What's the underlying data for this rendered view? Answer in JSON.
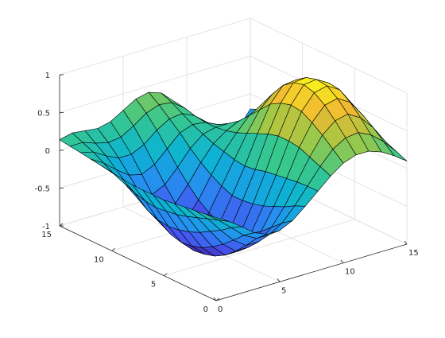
{
  "chart_data": {
    "type": "surface",
    "title": "",
    "xlabel": "",
    "ylabel": "",
    "zlabel": "",
    "x_range": [
      0,
      15
    ],
    "y_range": [
      0,
      15
    ],
    "zlim": [
      -1,
      1
    ],
    "x_ticks": [
      0,
      5,
      10,
      15
    ],
    "y_ticks": [
      0,
      5,
      10,
      15
    ],
    "z_ticks": [
      -1,
      -0.5,
      0,
      0.5,
      1
    ],
    "x_tick_labels": [
      "0",
      "5",
      "10",
      "15"
    ],
    "y_tick_labels": [
      "0",
      "5",
      "10",
      "15"
    ],
    "z_tick_labels": [
      "-1",
      "-0.5",
      "0",
      "0.5",
      "1"
    ],
    "grid": true,
    "colormap": "parula",
    "mesh_size": [
      16,
      16
    ],
    "x": [
      0,
      1,
      2,
      3,
      4,
      5,
      6,
      7,
      8,
      9,
      10,
      11,
      12,
      13,
      14,
      15
    ],
    "y": [
      0,
      1,
      2,
      3,
      4,
      5,
      6,
      7,
      8,
      9,
      10,
      11,
      12,
      13,
      14,
      15
    ],
    "z": [
      [
        0.1,
        0.0,
        -0.12,
        -0.25,
        -0.32,
        -0.32,
        -0.24,
        -0.1,
        0.05,
        0.2,
        0.32,
        0.38,
        0.38,
        0.32,
        0.22,
        0.1
      ],
      [
        0.08,
        -0.05,
        -0.2,
        -0.35,
        -0.44,
        -0.44,
        -0.34,
        -0.16,
        0.05,
        0.26,
        0.44,
        0.54,
        0.56,
        0.48,
        0.34,
        0.16
      ],
      [
        0.06,
        -0.1,
        -0.3,
        -0.48,
        -0.6,
        -0.6,
        -0.46,
        -0.24,
        0.04,
        0.32,
        0.56,
        0.7,
        0.74,
        0.64,
        0.46,
        0.22
      ],
      [
        0.04,
        -0.15,
        -0.38,
        -0.6,
        -0.74,
        -0.74,
        -0.58,
        -0.3,
        0.02,
        0.38,
        0.66,
        0.84,
        0.88,
        0.78,
        0.56,
        0.28
      ],
      [
        0.02,
        -0.2,
        -0.46,
        -0.7,
        -0.86,
        -0.86,
        -0.68,
        -0.36,
        0.0,
        0.4,
        0.74,
        0.94,
        0.98,
        0.88,
        0.64,
        0.32
      ],
      [
        0.0,
        -0.24,
        -0.52,
        -0.78,
        -0.94,
        -0.94,
        -0.74,
        -0.4,
        -0.02,
        0.4,
        0.76,
        0.98,
        1.0,
        0.9,
        0.66,
        0.34
      ],
      [
        0.0,
        -0.26,
        -0.56,
        -0.82,
        -0.98,
        -0.98,
        -0.76,
        -0.42,
        -0.06,
        0.36,
        0.72,
        0.94,
        0.96,
        0.84,
        0.62,
        0.32
      ],
      [
        0.0,
        -0.28,
        -0.58,
        -0.84,
        -1.0,
        -0.98,
        -0.74,
        -0.42,
        -0.08,
        0.3,
        0.64,
        0.84,
        0.86,
        0.74,
        0.54,
        0.28
      ],
      [
        0.0,
        -0.26,
        -0.56,
        -0.8,
        -0.94,
        -0.9,
        -0.66,
        -0.36,
        -0.06,
        0.24,
        0.5,
        0.66,
        0.68,
        0.58,
        0.42,
        0.22
      ],
      [
        0.02,
        -0.22,
        -0.5,
        -0.72,
        -0.84,
        -0.78,
        -0.56,
        -0.28,
        -0.02,
        0.18,
        0.36,
        0.46,
        0.48,
        0.42,
        0.3,
        0.16
      ],
      [
        0.04,
        -0.16,
        -0.4,
        -0.6,
        -0.7,
        -0.62,
        -0.42,
        -0.18,
        0.02,
        0.14,
        0.22,
        0.26,
        0.26,
        0.22,
        0.16,
        0.1
      ],
      [
        0.06,
        -0.1,
        -0.28,
        -0.44,
        -0.52,
        -0.44,
        -0.26,
        -0.06,
        0.08,
        0.12,
        0.12,
        0.08,
        0.04,
        0.02,
        0.02,
        0.04
      ],
      [
        0.08,
        -0.02,
        -0.16,
        -0.28,
        -0.32,
        -0.24,
        -0.08,
        0.08,
        0.14,
        0.12,
        0.04,
        -0.08,
        -0.16,
        -0.18,
        -0.12,
        -0.02
      ],
      [
        0.1,
        0.06,
        -0.04,
        -0.12,
        -0.12,
        -0.04,
        0.1,
        0.2,
        0.22,
        0.14,
        0.0,
        -0.18,
        -0.3,
        -0.32,
        -0.24,
        -0.08
      ],
      [
        0.12,
        0.12,
        0.06,
        0.02,
        0.04,
        0.14,
        0.26,
        0.32,
        0.3,
        0.18,
        -0.02,
        -0.24,
        -0.4,
        -0.44,
        -0.34,
        -0.14
      ],
      [
        0.14,
        0.18,
        0.16,
        0.14,
        0.18,
        0.28,
        0.38,
        0.42,
        0.36,
        0.2,
        -0.04,
        -0.3,
        -0.48,
        -0.52,
        -0.42,
        -0.2
      ]
    ]
  }
}
